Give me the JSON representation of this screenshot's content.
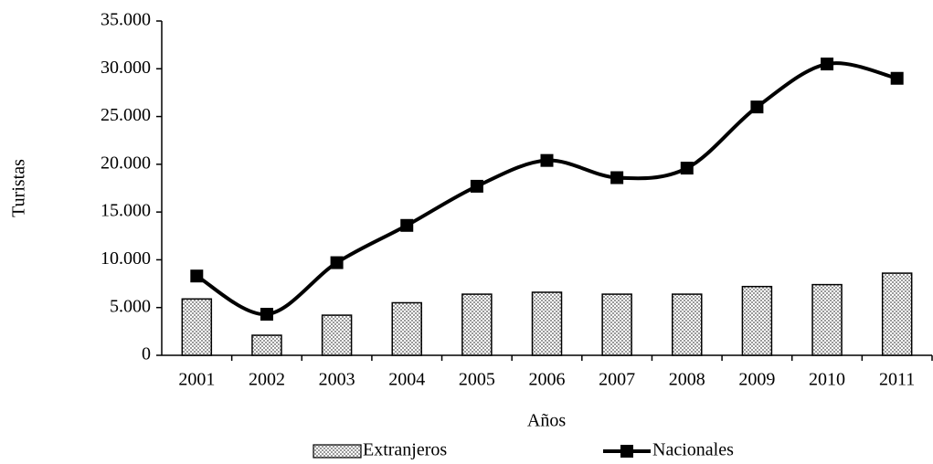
{
  "chart_data": {
    "type": "combo",
    "x_label": "Años",
    "y_label": "Turistas",
    "categories": [
      "2001",
      "2002",
      "2003",
      "2004",
      "2005",
      "2006",
      "2007",
      "2008",
      "2009",
      "2010",
      "2011"
    ],
    "series": [
      {
        "name": "Extranjeros",
        "type": "bar",
        "color": "#a6a6a6",
        "values": [
          5900,
          2100,
          4200,
          5500,
          6400,
          6600,
          6400,
          6400,
          7200,
          7400,
          8600
        ]
      },
      {
        "name": "Nacionales",
        "type": "line",
        "color": "#000000",
        "values": [
          8300,
          4300,
          9700,
          13600,
          17700,
          20400,
          18600,
          19600,
          26000,
          30500,
          29000
        ]
      }
    ],
    "ylim": [
      0,
      35000
    ],
    "yticks": [
      0,
      {
        "value": 5000,
        "label": "5.000"
      },
      {
        "value": 10000,
        "label": "10.000"
      },
      {
        "value": 15000,
        "label": "15.000"
      },
      {
        "value": 20000,
        "label": "20.000"
      },
      {
        "value": 25000,
        "label": "25.000"
      },
      {
        "value": 30000,
        "label": "30.000"
      },
      {
        "value": 35000,
        "label": "35.000"
      }
    ],
    "legend": "bottom"
  }
}
